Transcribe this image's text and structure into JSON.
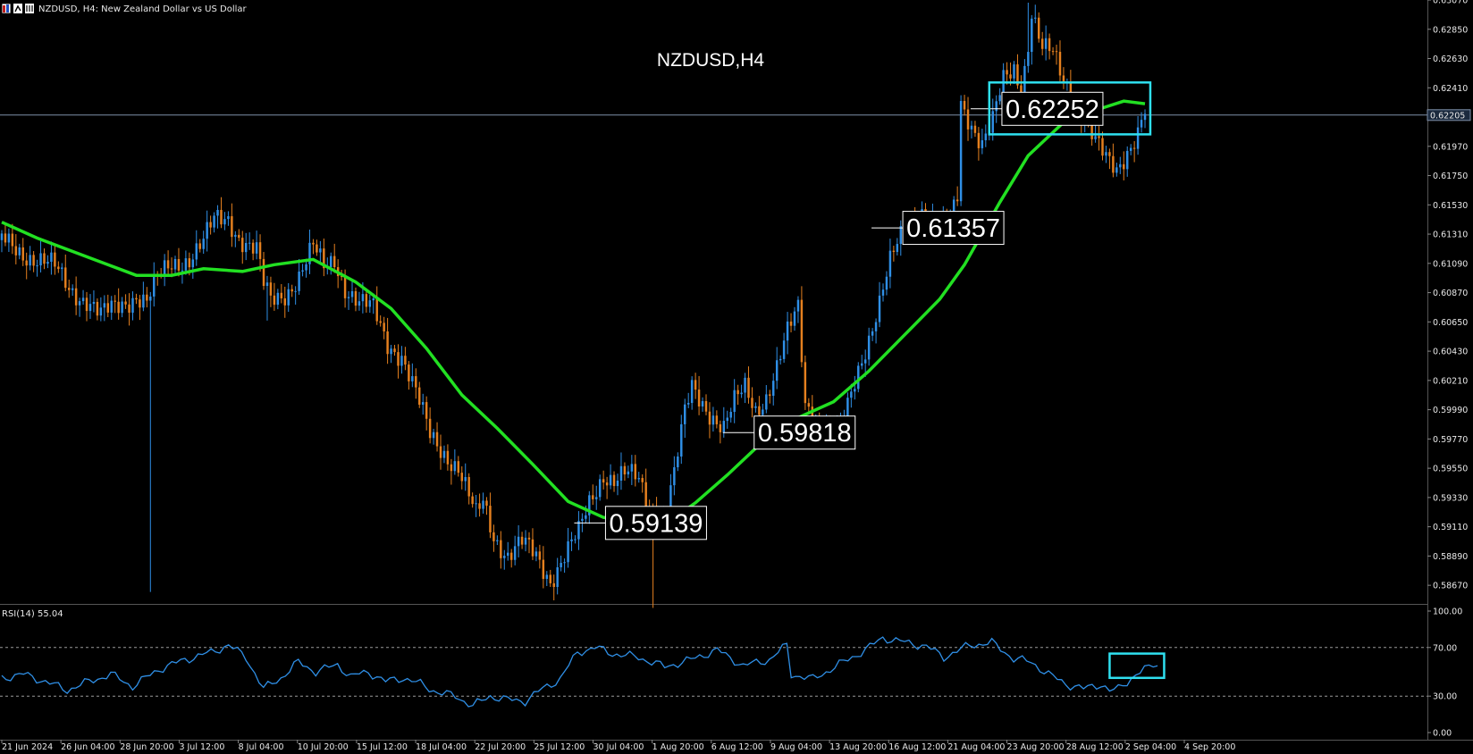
{
  "header": {
    "symbol_text": "NZDUSD, H4:  New Zealand Dollar vs US Dollar"
  },
  "colors": {
    "background": "#000000",
    "bull_candle": "#2f8fe6",
    "bear_candle": "#e5801f",
    "moving_average": "#22e022",
    "rsi_line": "#2f8fe6",
    "highlight_box": "#2fe0f0",
    "price_line": "#7e8fa8"
  },
  "chart_data": [
    {
      "type": "candlestick",
      "title": "NZDUSD,H4",
      "y_axis": {
        "ticks": [
          "0.63070",
          "0.62850",
          "0.62630",
          "0.62410",
          "0.62190",
          "0.61970",
          "0.61750",
          "0.61530",
          "0.61310",
          "0.61090",
          "0.60870",
          "0.60650",
          "0.60430",
          "0.60210",
          "0.59990",
          "0.59770",
          "0.59550",
          "0.59330",
          "0.59110",
          "0.58890",
          "0.58670"
        ],
        "range": [
          0.5853,
          0.6307
        ]
      },
      "x_axis": {
        "ticks": [
          "21 Jun 2024",
          "26 Jun 04:00",
          "28 Jun 20:00",
          "3 Jul 12:00",
          "8 Jul 04:00",
          "10 Jul 20:00",
          "15 Jul 12:00",
          "18 Jul 04:00",
          "22 Jul 20:00",
          "25 Jul 12:00",
          "30 Jul 04:00",
          "1 Aug 20:00",
          "6 Aug 12:00",
          "9 Aug 04:00",
          "13 Aug 20:00",
          "16 Aug 12:00",
          "21 Aug 04:00",
          "23 Aug 20:00",
          "28 Aug 12:00",
          "2 Sep 04:00",
          "4 Sep 20:00"
        ]
      },
      "current_price": "0.62205",
      "close_path": [
        [
          0,
          0.6126
        ],
        [
          8,
          0.6115
        ],
        [
          15,
          0.6105
        ],
        [
          19,
          0.6091
        ],
        [
          24,
          0.6082
        ],
        [
          28,
          0.6069
        ],
        [
          33,
          0.6077
        ],
        [
          38,
          0.6086
        ],
        [
          41,
          0.608
        ],
        [
          44,
          0.6096
        ],
        [
          48,
          0.6108
        ],
        [
          53,
          0.6114
        ],
        [
          57,
          0.6125
        ],
        [
          60,
          0.614
        ],
        [
          64,
          0.6143
        ],
        [
          67,
          0.613
        ],
        [
          70,
          0.6122
        ],
        [
          72,
          0.6118
        ],
        [
          74,
          0.6092
        ],
        [
          76,
          0.608
        ],
        [
          80,
          0.6087
        ],
        [
          84,
          0.61
        ],
        [
          88,
          0.612
        ],
        [
          91,
          0.6105
        ],
        [
          94,
          0.6113
        ],
        [
          97,
          0.6092
        ],
        [
          101,
          0.6078
        ],
        [
          105,
          0.6074
        ],
        [
          109,
          0.605
        ],
        [
          113,
          0.604
        ],
        [
          117,
          0.601
        ],
        [
          121,
          0.598
        ],
        [
          125,
          0.5968
        ],
        [
          129,
          0.5955
        ],
        [
          132,
          0.5932
        ],
        [
          134,
          0.5918
        ],
        [
          136,
          0.593
        ],
        [
          139,
          0.5905
        ],
        [
          143,
          0.589
        ],
        [
          147,
          0.5898
        ],
        [
          151,
          0.5888
        ],
        [
          155,
          0.5872
        ],
        [
          159,
          0.589
        ],
        [
          163,
          0.5905
        ],
        [
          166,
          0.5928
        ],
        [
          170,
          0.5952
        ],
        [
          173,
          0.5947
        ],
        [
          176,
          0.595
        ],
        [
          180,
          0.5945
        ],
        [
          182,
          0.5932
        ],
        [
          184,
          0.5926
        ],
        [
          187,
          0.592
        ],
        [
          190,
          0.595
        ],
        [
          193,
          0.5995
        ],
        [
          195,
          0.6015
        ],
        [
          198,
          0.6005
        ],
        [
          201,
          0.5995
        ],
        [
          204,
          0.5985
        ],
        [
          207,
          0.6003
        ],
        [
          210,
          0.6015
        ],
        [
          213,
          0.6
        ],
        [
          216,
          0.601
        ],
        [
          219,
          0.603
        ],
        [
          222,
          0.6055
        ],
        [
          225,
          0.6075
        ],
        [
          227,
          0.6005
        ],
        [
          230,
          0.5995
        ],
        [
          233,
          0.5985
        ],
        [
          236,
          0.5978
        ],
        [
          239,
          0.6
        ],
        [
          242,
          0.603
        ],
        [
          245,
          0.6055
        ],
        [
          248,
          0.608
        ],
        [
          251,
          0.6108
        ],
        [
          254,
          0.6128
        ],
        [
          257,
          0.614
        ],
        [
          260,
          0.615
        ],
        [
          263,
          0.614
        ],
        [
          266,
          0.6135
        ],
        [
          268,
          0.614
        ],
        [
          270,
          0.616
        ],
        [
          271,
          0.623
        ],
        [
          274,
          0.6215
        ],
        [
          277,
          0.62
        ],
        [
          280,
          0.6215
        ],
        [
          283,
          0.6245
        ],
        [
          286,
          0.6255
        ],
        [
          288,
          0.624
        ],
        [
          290,
          0.6275
        ],
        [
          291,
          0.63
        ],
        [
          294,
          0.627
        ],
        [
          297,
          0.6265
        ],
        [
          300,
          0.6245
        ],
        [
          303,
          0.6235
        ],
        [
          306,
          0.622
        ],
        [
          309,
          0.62
        ],
        [
          312,
          0.6185
        ],
        [
          315,
          0.6178
        ],
        [
          318,
          0.6195
        ],
        [
          321,
          0.621
        ],
        [
          323,
          0.6225
        ]
      ],
      "extreme_wicks": [
        [
          42,
          0.5862
        ],
        [
          184,
          0.585
        ],
        [
          75,
          0.6066
        ],
        [
          290,
          0.6305
        ]
      ],
      "series": [
        {
          "type": "line",
          "points": [
            [
              0,
              0.614
            ],
            [
              10,
              0.6128
            ],
            [
              25,
              0.6113
            ],
            [
              38,
              0.61
            ],
            [
              48,
              0.61
            ],
            [
              57,
              0.6105
            ],
            [
              68,
              0.6103
            ],
            [
              77,
              0.6108
            ],
            [
              88,
              0.6112
            ],
            [
              100,
              0.6095
            ],
            [
              110,
              0.6075
            ],
            [
              120,
              0.6045
            ],
            [
              130,
              0.601
            ],
            [
              140,
              0.5985
            ],
            [
              150,
              0.5958
            ],
            [
              160,
              0.593
            ],
            [
              170,
              0.5918
            ],
            [
              180,
              0.5915
            ],
            [
              189,
              0.5916
            ],
            [
              196,
              0.5929
            ],
            [
              205,
              0.595
            ],
            [
              215,
              0.5975
            ],
            [
              225,
              0.5993
            ],
            [
              235,
              0.6005
            ],
            [
              245,
              0.6028
            ],
            [
              255,
              0.6055
            ],
            [
              265,
              0.6082
            ],
            [
              272,
              0.6108
            ],
            [
              282,
              0.6155
            ],
            [
              290,
              0.619
            ],
            [
              300,
              0.6215
            ],
            [
              310,
              0.6225
            ],
            [
              317,
              0.6231
            ],
            [
              323,
              0.6229
            ]
          ]
        }
      ],
      "annotations": [
        {
          "label": "0.62252",
          "price": 0.62252,
          "index": 275
        },
        {
          "label": "0.61357",
          "price": 0.61357,
          "index": 247
        },
        {
          "label": "0.59818",
          "price": 0.59818,
          "index": 205
        },
        {
          "label": "0.59139",
          "price": 0.59139,
          "index": 163
        }
      ]
    },
    {
      "type": "line",
      "title": "RSI(14) 55.04",
      "y_axis": {
        "ticks": [
          "100.00",
          "70.00",
          "30.00",
          "0.00"
        ],
        "range": [
          0,
          100
        ]
      },
      "levels": [
        70,
        30
      ],
      "points": [
        [
          0,
          45
        ],
        [
          5,
          48
        ],
        [
          10,
          42
        ],
        [
          15,
          35
        ],
        [
          20,
          42
        ],
        [
          25,
          48
        ],
        [
          30,
          38
        ],
        [
          36,
          52
        ],
        [
          42,
          60
        ],
        [
          48,
          66
        ],
        [
          52,
          72
        ],
        [
          56,
          62
        ],
        [
          60,
          36
        ],
        [
          64,
          45
        ],
        [
          68,
          58
        ],
        [
          72,
          50
        ],
        [
          77,
          56
        ],
        [
          80,
          46
        ],
        [
          84,
          50
        ],
        [
          88,
          42
        ],
        [
          92,
          45
        ],
        [
          96,
          40
        ],
        [
          100,
          33
        ],
        [
          104,
          30
        ],
        [
          108,
          22
        ],
        [
          112,
          30
        ],
        [
          116,
          27
        ],
        [
          120,
          26
        ],
        [
          124,
          36
        ],
        [
          128,
          44
        ],
        [
          132,
          66
        ],
        [
          136,
          70
        ],
        [
          140,
          65
        ],
        [
          146,
          62
        ],
        [
          152,
          54
        ],
        [
          158,
          60
        ],
        [
          164,
          68
        ],
        [
          170,
          55
        ],
        [
          176,
          60
        ],
        [
          180,
          72
        ],
        [
          181,
          48
        ],
        [
          186,
          44
        ],
        [
          192,
          56
        ],
        [
          198,
          68
        ],
        [
          202,
          78
        ],
        [
          206,
          75
        ],
        [
          212,
          71
        ],
        [
          216,
          62
        ],
        [
          222,
          72
        ],
        [
          227,
          74
        ],
        [
          232,
          61
        ],
        [
          236,
          58
        ],
        [
          240,
          48
        ],
        [
          244,
          40
        ],
        [
          248,
          36
        ],
        [
          252,
          40
        ],
        [
          254,
          34
        ],
        [
          256,
          36
        ],
        [
          259,
          45
        ],
        [
          262,
          52
        ],
        [
          265,
          55
        ]
      ]
    }
  ]
}
